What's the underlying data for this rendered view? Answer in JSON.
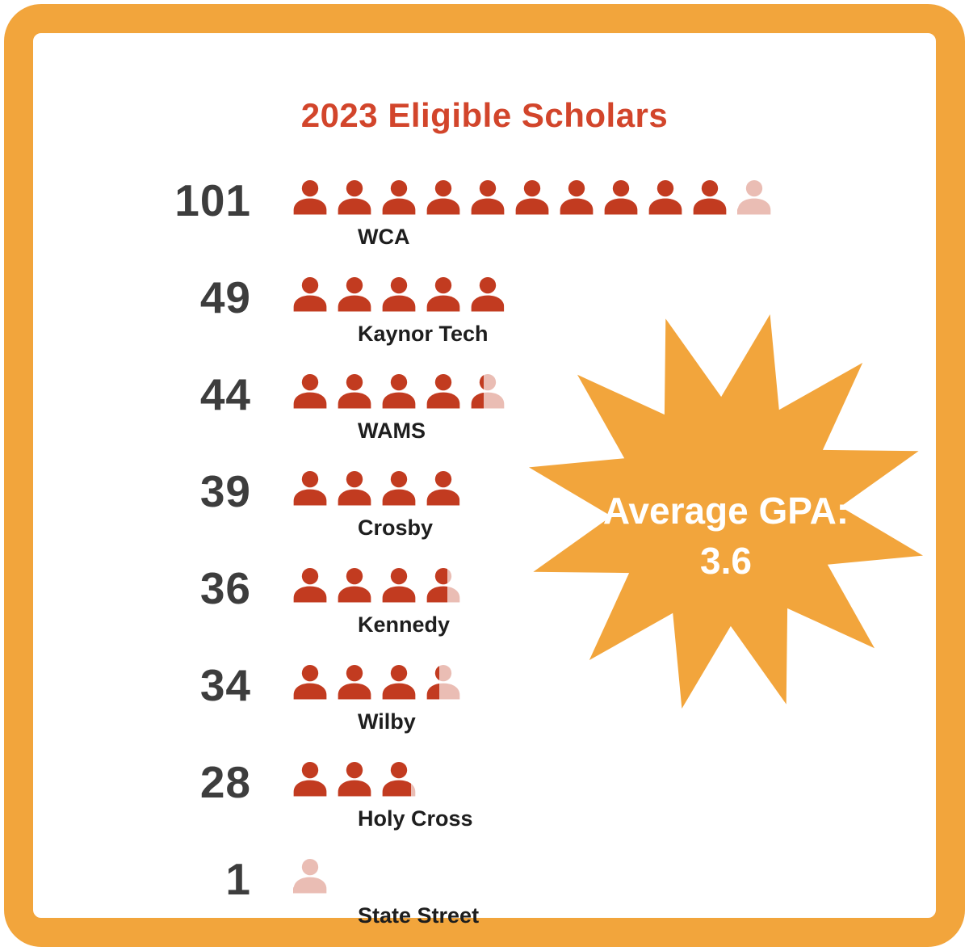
{
  "title": "2023 Eligible Scholars",
  "badge": {
    "line1": "Average GPA:",
    "line2": "3.6"
  },
  "colors": {
    "frame": "#F2A53C",
    "star": "#F2A53C",
    "title": "#D2452B",
    "icon": "#C23B20",
    "number": "#3D3D3D",
    "label": "#1E1E1E",
    "badge_text": "#FFFFFF"
  },
  "chart_data": {
    "type": "pictogram",
    "title": "2023 Eligible Scholars",
    "unit_per_icon": 10,
    "icon": "person-icon",
    "categories": [
      "WCA",
      "Kaynor Tech",
      "WAMS",
      "Crosby",
      "Kennedy",
      "Wilby",
      "Holy Cross",
      "State Street"
    ],
    "values": [
      101,
      49,
      44,
      39,
      36,
      34,
      28,
      1
    ],
    "annotation": "Average GPA: 3.6",
    "legend": "none"
  }
}
